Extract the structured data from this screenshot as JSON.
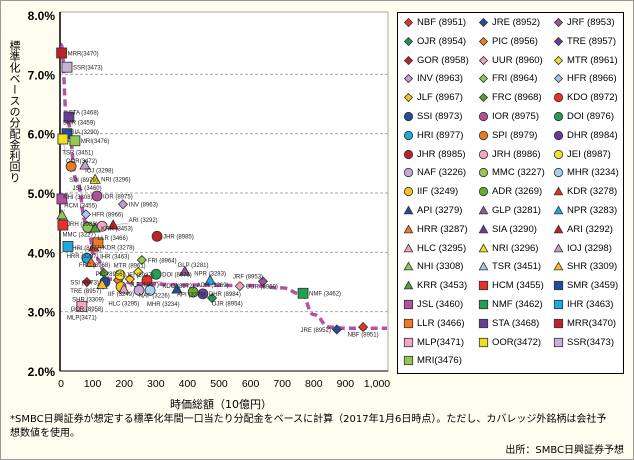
{
  "chart_data": {
    "type": "scatter",
    "ylabel": "標準化ベースの分配金利回り",
    "xlabel": "時価総額（10億円）",
    "xlim": [
      0,
      1000
    ],
    "ylim": [
      2.0,
      8.0
    ],
    "xticks": [
      "0",
      "100",
      "200",
      "300",
      "400",
      "500",
      "600",
      "700",
      "800",
      "900",
      "1,000"
    ],
    "yticks": [
      "2.0%",
      "3.0%",
      "4.0%",
      "5.0%",
      "6.0%",
      "7.0%",
      "8.0%"
    ],
    "grid": "horizontal dashed",
    "legend_position": "right",
    "trend_color": "#b054a8",
    "points": [
      {
        "label": "NBF (8951)",
        "shape": "diamond",
        "color": "#e8332a",
        "x": 956,
        "y": 2.74
      },
      {
        "label": "JRE (8952)",
        "shape": "diamond",
        "color": "#1f4e9c",
        "x": 873,
        "y": 2.7
      },
      {
        "label": "JRF (8953)",
        "shape": "diamond",
        "color": "#a0509a",
        "x": 639,
        "y": 3.51
      },
      {
        "label": "OJR (8954)",
        "shape": "diamond",
        "color": "#1a9a50",
        "x": 478,
        "y": 3.23
      },
      {
        "label": "PIC (8956)",
        "shape": "diamond",
        "color": "#f07d1a",
        "x": 180,
        "y": 3.53
      },
      {
        "label": "TRE (8957)",
        "shape": "diamond",
        "color": "#6a3c98",
        "x": 133,
        "y": 3.46
      },
      {
        "label": "GOR (8958)",
        "shape": "diamond",
        "color": "#b8242a",
        "x": 82,
        "y": 3.5
      },
      {
        "label": "UUR (8960)",
        "shape": "diamond",
        "color": "#f0a0c0",
        "x": 566,
        "y": 3.43
      },
      {
        "label": "MTR (8961)",
        "shape": "diamond",
        "color": "#f0e030",
        "x": 244,
        "y": 3.67
      },
      {
        "label": "INV (8963)",
        "shape": "diamond",
        "color": "#c0a0d0",
        "x": 196,
        "y": 4.81
      },
      {
        "label": "FRI (8964)",
        "shape": "diamond",
        "color": "#90c850",
        "x": 256,
        "y": 3.87
      },
      {
        "label": "HFR (8966)",
        "shape": "diamond",
        "color": "#a0c8f0",
        "x": 79,
        "y": 4.64
      },
      {
        "label": "JLF (8967)",
        "shape": "diamond",
        "color": "#f8c020",
        "x": 218,
        "y": 3.55
      },
      {
        "label": "FRC (8968)",
        "shape": "diamond",
        "color": "#50a030",
        "x": 136,
        "y": 3.65
      },
      {
        "label": "KDO (8972)",
        "shape": "circle",
        "color": "#e8302a",
        "x": 272,
        "y": 3.53
      },
      {
        "label": "SSI (8973)",
        "shape": "circle",
        "color": "#1f4e9c",
        "x": 139,
        "y": 3.5
      },
      {
        "label": "IOR (8975)",
        "shape": "circle",
        "color": "#b0509c",
        "x": 114,
        "y": 4.95
      },
      {
        "label": "DOI (8976)",
        "shape": "circle",
        "color": "#20a050",
        "x": 301,
        "y": 3.63
      },
      {
        "label": "HRI (8977)",
        "shape": "circle",
        "color": "#20a8e0",
        "x": 82,
        "y": 3.9
      },
      {
        "label": "SPI (8979)",
        "shape": "circle",
        "color": "#f07820",
        "x": 32,
        "y": 5.45
      },
      {
        "label": "DHR (8984)",
        "shape": "circle",
        "color": "#6a3c98",
        "x": 449,
        "y": 3.3
      },
      {
        "label": "JHR (8985)",
        "shape": "circle",
        "color": "#c02028",
        "x": 304,
        "y": 4.27
      },
      {
        "label": "JRH (8986)",
        "shape": "circle",
        "color": "#f0a8c0",
        "x": 130,
        "y": 4.44
      },
      {
        "label": "JEI (8987)",
        "shape": "circle",
        "color": "#f0e030",
        "x": 187,
        "y": 3.62
      },
      {
        "label": "NAF (3226)",
        "shape": "circle",
        "color": "#c8a8d8",
        "x": 247,
        "y": 3.36
      },
      {
        "label": "MMC (3227)",
        "shape": "circle",
        "color": "#90c850",
        "x": 85,
        "y": 4.42
      },
      {
        "label": "MHR (3234)",
        "shape": "circle",
        "color": "#a8d0f0",
        "x": 282,
        "y": 3.36
      },
      {
        "label": "IIF (3249)",
        "shape": "circle",
        "color": "#f8c020",
        "x": 190,
        "y": 3.42
      },
      {
        "label": "ADR (3269)",
        "shape": "circle",
        "color": "#60b030",
        "x": 418,
        "y": 3.33
      },
      {
        "label": "KDR (3278)",
        "shape": "triangle",
        "color": "#e83020",
        "x": 104,
        "y": 4.09
      },
      {
        "label": "API (3279)",
        "shape": "triangle",
        "color": "#1f4e9c",
        "x": 367,
        "y": 3.38
      },
      {
        "label": "GLP (3281)",
        "shape": "triangle",
        "color": "#a050a0",
        "x": 392,
        "y": 3.68
      },
      {
        "label": "NPR (3283)",
        "shape": "triangle",
        "color": "#20a8e0",
        "x": 472,
        "y": 3.53
      },
      {
        "label": "HRR (3287)",
        "shape": "triangle",
        "color": "#f07820",
        "x": 95,
        "y": 3.83
      },
      {
        "label": "SIA (3290)",
        "shape": "triangle",
        "color": "#6a3c98",
        "x": 16,
        "y": 5.99
      },
      {
        "label": "ARI (3292)",
        "shape": "triangle",
        "color": "#c02028",
        "x": 165,
        "y": 4.46
      },
      {
        "label": "HLC (3295)",
        "shape": "triangle",
        "color": "#f0a0c0",
        "x": 199,
        "y": 3.38
      },
      {
        "label": "NRI (3296)",
        "shape": "triangle",
        "color": "#f0e020",
        "x": 108,
        "y": 5.23
      },
      {
        "label": "IOJ (3298)",
        "shape": "triangle",
        "color": "#c0a0d0",
        "x": 76,
        "y": 5.47
      },
      {
        "label": "NHI (3308)",
        "shape": "triangle",
        "color": "#90c850",
        "x": 3,
        "y": 4.63
      },
      {
        "label": "TSR (3451)",
        "shape": "triangle",
        "color": "#a0c8f0",
        "x": 9,
        "y": 5.94
      },
      {
        "label": "SHR (3309)",
        "shape": "triangle",
        "color": "#f8c020",
        "x": 130,
        "y": 3.46
      },
      {
        "label": "KRR (3453)",
        "shape": "triangle",
        "color": "#50a030",
        "x": 108,
        "y": 4.41
      },
      {
        "label": "HCM (3455)",
        "shape": "square",
        "color": "#e8302a",
        "x": 6,
        "y": 4.46
      },
      {
        "label": "SMR (3459)",
        "shape": "square",
        "color": "#1f4e9c",
        "x": 19,
        "y": 6.0
      },
      {
        "label": "JSL (3460)",
        "shape": "square",
        "color": "#b050a0",
        "x": 3,
        "y": 4.9
      },
      {
        "label": "NMF (3462)",
        "shape": "square",
        "color": "#20a050",
        "x": 766,
        "y": 3.31
      },
      {
        "label": "IHR (3463)",
        "shape": "square",
        "color": "#20a8e0",
        "x": 22,
        "y": 4.1
      },
      {
        "label": "LLR (3466)",
        "shape": "square",
        "color": "#f07820",
        "x": 117,
        "y": 4.16
      },
      {
        "label": "STA (3468)",
        "shape": "square",
        "color": "#6a3c98",
        "x": 25,
        "y": 6.28
      },
      {
        "label": "MRR(3470)",
        "shape": "square",
        "color": "#c02028",
        "x": 2,
        "y": 7.36
      },
      {
        "label": "MLP(3471)",
        "shape": "square",
        "color": "#f0a8c8",
        "x": 66,
        "y": 3.09
      },
      {
        "label": "OOR(3472)",
        "shape": "square",
        "color": "#f0e020",
        "x": 6,
        "y": 5.91
      },
      {
        "label": "SSR(3473)",
        "shape": "square",
        "color": "#c8b0d8",
        "x": 19,
        "y": 7.12
      },
      {
        "label": "MRI(3476)",
        "shape": "square",
        "color": "#90c850",
        "x": 44,
        "y": 5.88
      }
    ],
    "trend": [
      [
        0,
        7.5
      ],
      [
        20,
        6.2
      ],
      [
        50,
        5.2
      ],
      [
        80,
        4.5
      ],
      [
        110,
        3.9
      ],
      [
        150,
        3.55
      ],
      [
        250,
        3.47
      ],
      [
        400,
        3.45
      ],
      [
        600,
        3.44
      ],
      [
        700,
        3.4
      ],
      [
        760,
        3.3
      ],
      [
        800,
        2.95
      ],
      [
        850,
        2.74
      ],
      [
        900,
        2.72
      ],
      [
        1050,
        2.72
      ]
    ]
  },
  "footnote": "*SMBC日興証券が想定する標準化年間一口当たり分配金をベースに計算（2017年1月6日時点）。ただし、カバレッジ外銘柄は会社予想数値を使用。",
  "source": "出所：SMBC日興証券予想"
}
